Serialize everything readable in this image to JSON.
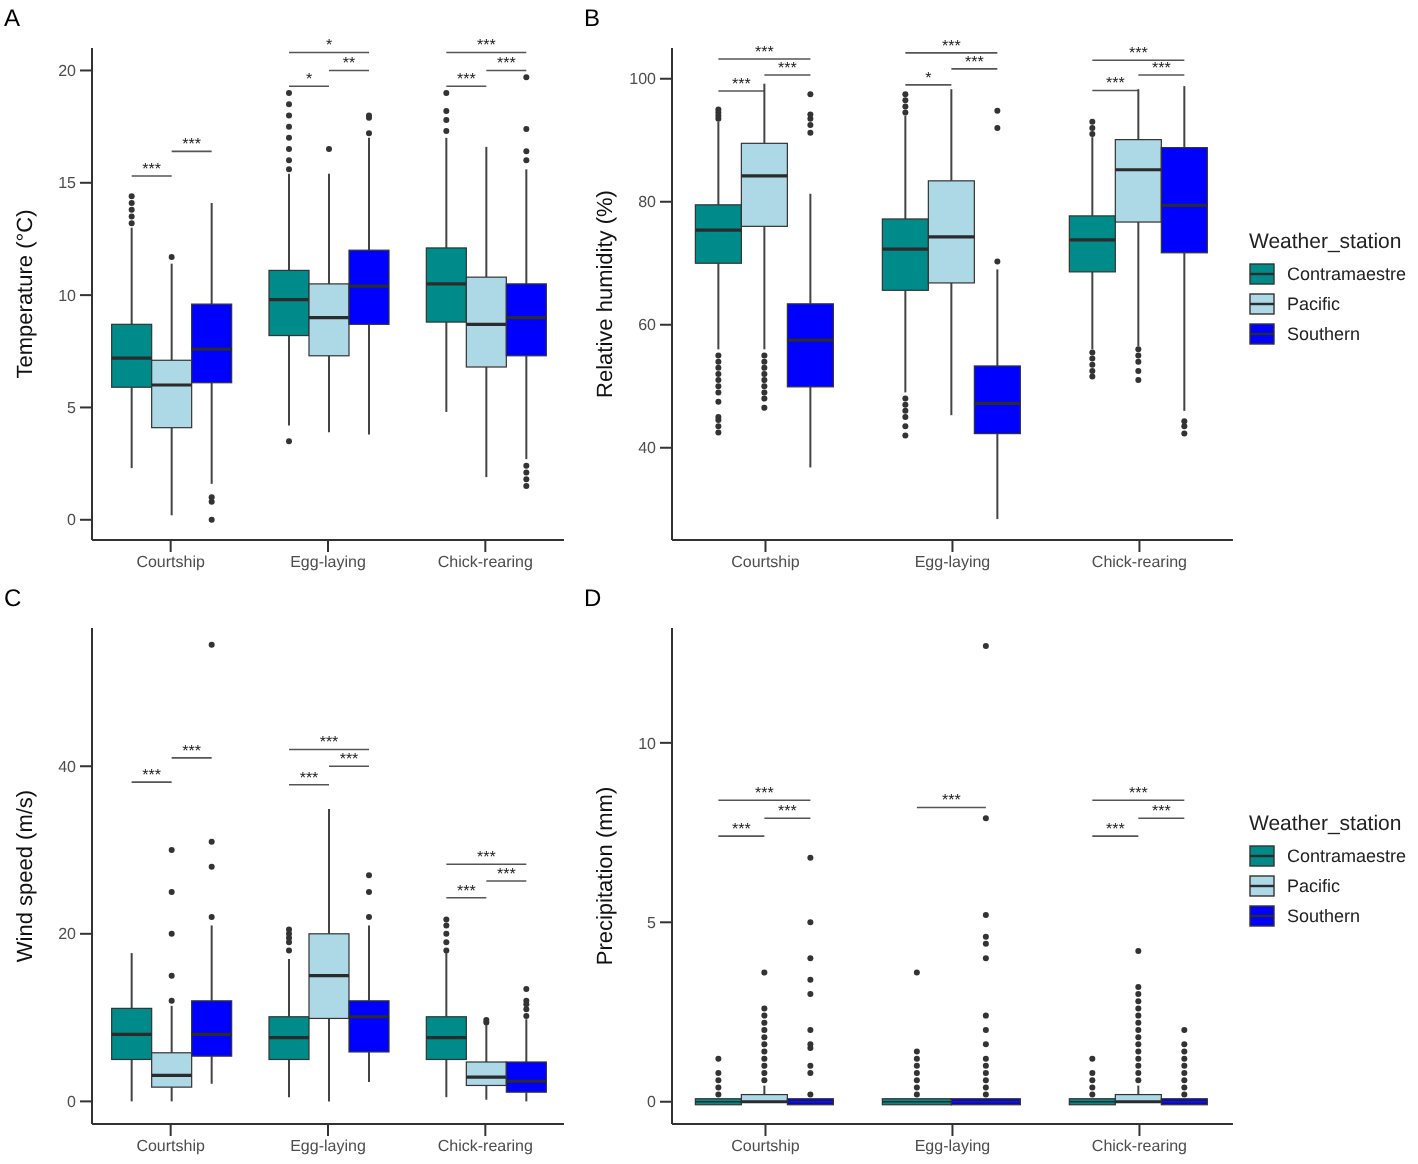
{
  "chart_data": [
    {
      "type": "box",
      "title": "A",
      "ylabel": "Temperature (°C)",
      "categories": [
        "Courtship",
        "Egg-laying",
        "Chick-rearing"
      ],
      "ylim": [
        -0.9,
        21
      ],
      "yticks": [
        0,
        5,
        10,
        15,
        20
      ],
      "legend": false,
      "series": [
        {
          "color": "#008b8b",
          "boxes": [
            {
              "low": 2.3,
              "q1": 5.9,
              "median": 7.2,
              "q3": 8.7,
              "high": 13.0,
              "outliers": [
                13.2,
                13.5,
                13.8,
                14.1,
                14.4
              ]
            },
            {
              "low": 4.2,
              "q1": 8.2,
              "median": 9.8,
              "q3": 11.1,
              "high": 15.4,
              "outliers": [
                3.5,
                15.6,
                16,
                16.5,
                17,
                17.5,
                18,
                18.5,
                19
              ]
            },
            {
              "low": 4.8,
              "q1": 8.8,
              "median": 10.5,
              "q3": 12.1,
              "high": 17.0,
              "outliers": [
                17.3,
                17.8,
                18.2,
                19.0
              ]
            }
          ]
        },
        {
          "color": "#add8e6",
          "boxes": [
            {
              "low": 0.2,
              "q1": 4.1,
              "median": 6.0,
              "q3": 7.1,
              "high": 11.4,
              "outliers": [
                11.7
              ]
            },
            {
              "low": 3.9,
              "q1": 7.3,
              "median": 9.0,
              "q3": 10.5,
              "high": 15.4,
              "outliers": [
                16.5
              ]
            },
            {
              "low": 1.9,
              "q1": 6.8,
              "median": 8.7,
              "q3": 10.8,
              "high": 16.6
            }
          ]
        },
        {
          "color": "#0000ff",
          "boxes": [
            {
              "low": 1.6,
              "q1": 6.1,
              "median": 7.6,
              "q3": 9.6,
              "high": 14.1,
              "outliers": [
                1.0,
                0.8,
                0.0
              ]
            },
            {
              "low": 3.8,
              "q1": 8.7,
              "median": 10.4,
              "q3": 12.0,
              "high": 17.0,
              "outliers": [
                17.2,
                17.9,
                18.0
              ]
            },
            {
              "low": 2.7,
              "q1": 7.3,
              "median": 9.0,
              "q3": 10.5,
              "high": 15.6,
              "outliers": [
                1.5,
                1.8,
                2.1,
                2.4,
                16,
                16.4,
                17.4,
                19.7
              ]
            }
          ]
        }
      ],
      "annotations": [
        "***",
        "***",
        "*",
        "**",
        "*",
        "***",
        "***",
        "***"
      ]
    },
    {
      "type": "box",
      "title": "B",
      "ylabel": "Relative humidity (%)",
      "categories": [
        "Courtship",
        "Egg-laying",
        "Chick-rearing"
      ],
      "ylim": [
        25,
        105
      ],
      "yticks": [
        40,
        60,
        80,
        100
      ],
      "legend": "right",
      "legend_title": "Weather_station",
      "series": [
        {
          "name": "Contramaestre",
          "color": "#008b8b",
          "boxes": [
            {
              "low": 56,
              "q1": 70,
              "median": 75.4,
              "q3": 79.5,
              "high": 93,
              "outliers": [
                42.5,
                43.5,
                44.5,
                45,
                47.5,
                49,
                50,
                51,
                52,
                53,
                54,
                55,
                93.5,
                94,
                94.5,
                95
              ]
            },
            {
              "low": 49,
              "q1": 65.6,
              "median": 72.3,
              "q3": 77.2,
              "high": 94,
              "outliers": [
                42,
                43.5,
                45,
                46,
                47,
                48,
                94.5,
                95.5,
                96.5,
                97.5
              ]
            },
            {
              "low": 56,
              "q1": 68.6,
              "median": 73.8,
              "q3": 77.7,
              "high": 90.5,
              "outliers": [
                51.6,
                52.5,
                53.5,
                54.5,
                55.5,
                91,
                92,
                93
              ]
            }
          ]
        },
        {
          "name": "Pacific",
          "color": "#add8e6",
          "boxes": [
            {
              "low": 56,
              "q1": 76,
              "median": 84.2,
              "q3": 89.5,
              "high": 99.2,
              "outliers": [
                46.5,
                48,
                49,
                50,
                51,
                52,
                53,
                54,
                55
              ]
            },
            {
              "low": 45.3,
              "q1": 66.8,
              "median": 74.3,
              "q3": 83.4,
              "high": 98.3
            },
            {
              "low": 56.5,
              "q1": 76.7,
              "median": 85.2,
              "q3": 90.1,
              "high": 98.3,
              "outliers": [
                51,
                52.5,
                54,
                55,
                56
              ]
            }
          ]
        },
        {
          "name": "Southern",
          "color": "#0000ff",
          "boxes": [
            {
              "low": 36.8,
              "q1": 49.9,
              "median": 57.5,
              "q3": 63.4,
              "high": 81.3,
              "outliers": [
                91.2,
                92.5,
                93.5,
                94.2,
                97.5
              ]
            },
            {
              "low": 28.4,
              "q1": 42.3,
              "median": 47.2,
              "q3": 53.3,
              "high": 69,
              "outliers": [
                70.3,
                92,
                94.8
              ]
            },
            {
              "low": 46,
              "q1": 71.7,
              "median": 79.4,
              "q3": 88.8,
              "high": 98.8,
              "outliers": [
                42.3,
                43.5,
                44.3
              ]
            }
          ]
        }
      ],
      "annotations": [
        "***",
        "***",
        "***",
        "*",
        "***",
        "***",
        "***",
        "***",
        "***"
      ]
    },
    {
      "type": "box",
      "title": "C",
      "ylabel": "Wind speed (m/s)",
      "categories": [
        "Courtship",
        "Egg-laying",
        "Chick-rearing"
      ],
      "ylim": [
        -2.7,
        56.5
      ],
      "yticks": [
        0,
        20,
        40
      ],
      "legend": false,
      "series": [
        {
          "color": "#008b8b",
          "boxes": [
            {
              "low": 0,
              "q1": 5.0,
              "median": 8.0,
              "q3": 11.1,
              "high": 17.7
            },
            {
              "low": 0.5,
              "q1": 5.0,
              "median": 7.6,
              "q3": 10.1,
              "high": 17,
              "outliers": [
                18,
                19,
                19.5,
                20,
                20.5
              ]
            },
            {
              "low": 0.5,
              "q1": 5.0,
              "median": 7.6,
              "q3": 10.1,
              "high": 17.7,
              "outliers": [
                18,
                19,
                20,
                21,
                21.7
              ]
            }
          ]
        },
        {
          "color": "#add8e6",
          "boxes": [
            {
              "low": 0,
              "q1": 1.7,
              "median": 3.1,
              "q3": 5.8,
              "high": 11.4,
              "outliers": [
                12,
                15,
                20,
                25,
                30
              ]
            },
            {
              "low": 0,
              "q1": 9.9,
              "median": 15.0,
              "q3": 20.0,
              "high": 34.9
            },
            {
              "low": 0.2,
              "q1": 1.9,
              "median": 2.9,
              "q3": 4.7,
              "high": 9.1,
              "outliers": [
                9.4,
                9.7
              ]
            }
          ]
        },
        {
          "color": "#0000ff",
          "boxes": [
            {
              "low": 2.1,
              "q1": 5.4,
              "median": 8.0,
              "q3": 12.0,
              "high": 21.0,
              "outliers": [
                22,
                28,
                31,
                54.5
              ]
            },
            {
              "low": 2.3,
              "q1": 5.9,
              "median": 10.1,
              "q3": 12.0,
              "high": 21,
              "outliers": [
                22,
                25,
                27
              ]
            },
            {
              "low": 0,
              "q1": 1.1,
              "median": 2.4,
              "q3": 4.7,
              "high": 9.8,
              "outliers": [
                10.2,
                11,
                11.6,
                12,
                13.4
              ]
            }
          ]
        }
      ],
      "annotations": [
        "***",
        "***",
        "***",
        "***",
        "***",
        "***",
        "***",
        "***"
      ]
    },
    {
      "type": "box",
      "title": "D",
      "ylabel": "Precipitation (mm)",
      "categories": [
        "Courtship",
        "Egg-laying",
        "Chick-rearing"
      ],
      "ylim": [
        -0.62,
        13.2
      ],
      "yticks": [
        0,
        5,
        10
      ],
      "legend": "right",
      "legend_title": "Weather_station",
      "series": [
        {
          "name": "Contramaestre",
          "color": "#008b8b",
          "boxes": [
            {
              "low": 0,
              "q1": 0,
              "median": 0,
              "q3": 0,
              "high": 0,
              "outliers": [
                0.2,
                0.4,
                0.6,
                0.8,
                1.2
              ]
            },
            {
              "low": 0,
              "q1": 0,
              "median": 0,
              "q3": 0,
              "high": 0,
              "outliers": [
                0.2,
                0.4,
                0.6,
                0.8,
                1,
                1.2,
                1.4,
                3.6
              ]
            },
            {
              "low": 0,
              "q1": 0,
              "median": 0,
              "q3": 0,
              "high": 0,
              "outliers": [
                0.2,
                0.4,
                0.6,
                0.8,
                1.2
              ]
            }
          ]
        },
        {
          "name": "Pacific",
          "color": "#add8e6",
          "boxes": [
            {
              "low": 0,
              "q1": 0,
              "median": 0,
              "q3": 0.2,
              "high": 0.45,
              "outliers": [
                0.6,
                0.8,
                1,
                1.2,
                1.4,
                1.6,
                1.8,
                2,
                2.2,
                2.4,
                2.6,
                3.6
              ]
            },
            null,
            {
              "low": 0,
              "q1": 0,
              "median": 0,
              "q3": 0.2,
              "high": 0.45,
              "outliers": [
                0.6,
                0.8,
                1,
                1.2,
                1.4,
                1.6,
                1.8,
                2,
                2.2,
                2.4,
                2.6,
                2.8,
                3,
                3.2,
                4.2
              ]
            }
          ]
        },
        {
          "name": "Southern",
          "color": "#0000ff",
          "boxes": [
            {
              "low": 0,
              "q1": 0,
              "median": 0,
              "q3": 0,
              "high": 0,
              "outliers": [
                0.2,
                0.8,
                1,
                1.5,
                1.6,
                2,
                3,
                3.4,
                4,
                5,
                6.8
              ]
            },
            {
              "low": 0,
              "q1": 0,
              "median": 0,
              "q3": 0,
              "high": 0,
              "outliers": [
                0.2,
                0.4,
                0.6,
                0.8,
                1,
                1.2,
                1.6,
                2,
                2.4,
                4,
                4.4,
                4.6,
                5.2,
                7.9,
                12.7
              ]
            },
            {
              "low": 0,
              "q1": 0,
              "median": 0,
              "q3": 0,
              "high": 0,
              "outliers": [
                0.2,
                0.4,
                0.6,
                0.8,
                1,
                1.2,
                1.4,
                1.6,
                2.0
              ]
            }
          ]
        }
      ],
      "annotations": [
        "***",
        "***",
        "***",
        "***",
        "***",
        "***",
        "***"
      ]
    }
  ]
}
